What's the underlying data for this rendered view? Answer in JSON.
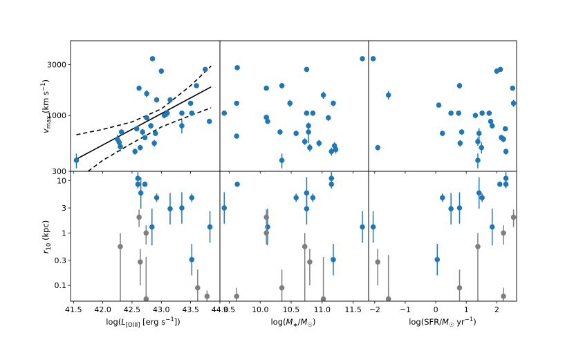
{
  "figure": {
    "panel_ylabels": {
      "top": {
        "main": "v",
        "sub": "max",
        "rest": " (km s",
        "sup": "−1",
        "end": ")"
      },
      "bottom": {
        "main": "r",
        "sub": "10",
        "rest": " (kpc)"
      }
    },
    "xlabels": [
      {
        "pre": "log(",
        "italic": "L",
        "sub": "[OIII]",
        "mid": " [erg s",
        "sup": "−1",
        "post": "])"
      },
      {
        "pre": "log(",
        "italic": "M",
        "sub": "∗",
        "mid": "/",
        "italic2": "M",
        "sub2": "☉",
        "post": ")"
      },
      {
        "pre": "log(SFR/",
        "italic": "M",
        "sub": "☉",
        "mid": " yr",
        "sup": "−1",
        "post": ")"
      }
    ]
  },
  "chart_data": [
    {
      "type": "scatter",
      "panel": "top-left",
      "xlim": [
        41.45,
        44.0
      ],
      "ylim": [
        300,
        5000
      ],
      "yscale": "log",
      "xticks": [
        "41.5",
        "42.0",
        "42.5",
        "43.0",
        "43.5",
        "44.0"
      ],
      "yticks": [
        "300",
        "1000",
        "3000"
      ],
      "colors": {
        "points": "#1f77b4",
        "fit": "#000000"
      },
      "series": [
        {
          "x": 41.55,
          "y": 380,
          "yerr": 60
        },
        {
          "x": 42.25,
          "y": 600,
          "yerr": 60
        },
        {
          "x": 42.28,
          "y": 560,
          "yerr": 50
        },
        {
          "x": 42.3,
          "y": 510,
          "yerr": 50
        },
        {
          "x": 42.32,
          "y": 700,
          "yerr": 40
        },
        {
          "x": 42.55,
          "y": 460,
          "yerr": 30
        },
        {
          "x": 42.58,
          "y": 750,
          "yerr": 40
        },
        {
          "x": 42.62,
          "y": 1800,
          "yerr": 60
        },
        {
          "x": 42.64,
          "y": 500,
          "yerr": 30
        },
        {
          "x": 42.68,
          "y": 700,
          "yerr": 50
        },
        {
          "x": 42.72,
          "y": 620,
          "yerr": 30
        },
        {
          "x": 42.75,
          "y": 1600,
          "yerr": 120
        },
        {
          "x": 42.75,
          "y": 950,
          "yerr": 50
        },
        {
          "x": 42.82,
          "y": 800,
          "yerr": 50
        },
        {
          "x": 42.85,
          "y": 3400,
          "yerr": 150
        },
        {
          "x": 42.88,
          "y": 550,
          "yerr": 40
        },
        {
          "x": 42.9,
          "y": 680,
          "yerr": 40
        },
        {
          "x": 42.92,
          "y": 1400,
          "yerr": 80
        },
        {
          "x": 43.0,
          "y": 2600,
          "yerr": 150
        },
        {
          "x": 43.05,
          "y": 1000,
          "yerr": 60
        },
        {
          "x": 43.1,
          "y": 1050,
          "yerr": 80
        },
        {
          "x": 43.15,
          "y": 1400,
          "yerr": 80
        },
        {
          "x": 43.35,
          "y": 800,
          "yerr": 120
        },
        {
          "x": 43.35,
          "y": 1050,
          "yerr": 50
        },
        {
          "x": 43.5,
          "y": 1300,
          "yerr": 60
        },
        {
          "x": 43.52,
          "y": 1050,
          "yerr": 60
        },
        {
          "x": 43.6,
          "y": 1900,
          "yerr": 100
        },
        {
          "x": 43.75,
          "y": 2700,
          "yerr": 100
        },
        {
          "x": 43.82,
          "y": 880,
          "yerr": 40
        }
      ],
      "fit": {
        "x": [
          41.55,
          43.85
        ],
        "y": [
          390,
          1850
        ],
        "band_upper_x": [
          41.55,
          42.0,
          42.5,
          43.0,
          43.5,
          43.85
        ],
        "band_upper_y": [
          660,
          740,
          870,
          1150,
          1900,
          2900
        ],
        "band_lower_x": [
          41.75,
          42.0,
          42.5,
          43.0,
          43.5,
          43.85
        ],
        "band_lower_y": [
          300,
          380,
          550,
          780,
          1000,
          1180
        ]
      }
    },
    {
      "type": "scatter",
      "panel": "top-middle",
      "xlim": [
        9.35,
        11.75
      ],
      "ylim": [
        300,
        5000
      ],
      "yscale": "log",
      "xticks": [
        "9.5",
        "10.0",
        "10.5",
        "11.0",
        "11.5"
      ],
      "colors": {
        "points": "#1f77b4"
      },
      "series": [
        {
          "x": 9.42,
          "y": 1050,
          "yerr": 40
        },
        {
          "x": 9.62,
          "y": 1300,
          "yerr": 50
        },
        {
          "x": 9.63,
          "y": 2800,
          "yerr": 80
        },
        {
          "x": 9.62,
          "y": 640,
          "yerr": 30
        },
        {
          "x": 10.1,
          "y": 1800,
          "yerr": 60
        },
        {
          "x": 10.1,
          "y": 960,
          "yerr": 50
        },
        {
          "x": 10.12,
          "y": 880,
          "yerr": 40
        },
        {
          "x": 10.32,
          "y": 700,
          "yerr": 40
        },
        {
          "x": 10.35,
          "y": 1900,
          "yerr": 120
        },
        {
          "x": 10.35,
          "y": 380,
          "yerr": 60
        },
        {
          "x": 10.48,
          "y": 1300,
          "yerr": 100
        },
        {
          "x": 10.58,
          "y": 680,
          "yerr": 40
        },
        {
          "x": 10.72,
          "y": 570,
          "yerr": 40
        },
        {
          "x": 10.75,
          "y": 2700,
          "yerr": 150
        },
        {
          "x": 10.75,
          "y": 1050,
          "yerr": 50
        },
        {
          "x": 10.78,
          "y": 800,
          "yerr": 60
        },
        {
          "x": 10.78,
          "y": 700,
          "yerr": 150
        },
        {
          "x": 10.8,
          "y": 500,
          "yerr": 40
        },
        {
          "x": 10.85,
          "y": 1050,
          "yerr": 60
        },
        {
          "x": 10.95,
          "y": 550,
          "yerr": 40
        },
        {
          "x": 11.02,
          "y": 1550,
          "yerr": 120
        },
        {
          "x": 11.1,
          "y": 950,
          "yerr": 60
        },
        {
          "x": 11.15,
          "y": 460,
          "yerr": 40
        },
        {
          "x": 11.18,
          "y": 1300,
          "yerr": 80
        },
        {
          "x": 11.2,
          "y": 520,
          "yerr": 40
        },
        {
          "x": 11.22,
          "y": 480,
          "yerr": 40
        },
        {
          "x": 11.65,
          "y": 3400,
          "yerr": 150
        }
      ]
    },
    {
      "type": "scatter",
      "panel": "top-right",
      "xlim": [
        -2.2,
        2.65
      ],
      "ylim": [
        300,
        5000
      ],
      "yscale": "log",
      "xticks": [
        "−2",
        "−1",
        "0",
        "1",
        "2"
      ],
      "colors": {
        "points": "#1f77b4"
      },
      "series": [
        {
          "x": -2.05,
          "y": 3400,
          "yerr": 150
        },
        {
          "x": -1.9,
          "y": 500,
          "yerr": 30
        },
        {
          "x": -1.55,
          "y": 1550,
          "yerr": 150
        },
        {
          "x": 0.1,
          "y": 1250,
          "yerr": 50
        },
        {
          "x": 0.22,
          "y": 680,
          "yerr": 40
        },
        {
          "x": 0.5,
          "y": 1050,
          "yerr": 50
        },
        {
          "x": 0.78,
          "y": 1900,
          "yerr": 120
        },
        {
          "x": 0.8,
          "y": 550,
          "yerr": 40
        },
        {
          "x": 0.85,
          "y": 700,
          "yerr": 40
        },
        {
          "x": 0.75,
          "y": 1050,
          "yerr": 60
        },
        {
          "x": 1.3,
          "y": 1000,
          "yerr": 60
        },
        {
          "x": 1.38,
          "y": 570,
          "yerr": 50
        },
        {
          "x": 1.38,
          "y": 380,
          "yerr": 60
        },
        {
          "x": 1.42,
          "y": 680,
          "yerr": 80
        },
        {
          "x": 1.5,
          "y": 500,
          "yerr": 60
        },
        {
          "x": 1.52,
          "y": 1050,
          "yerr": 60
        },
        {
          "x": 1.75,
          "y": 1050,
          "yerr": 60
        },
        {
          "x": 1.8,
          "y": 880,
          "yerr": 40
        },
        {
          "x": 1.85,
          "y": 800,
          "yerr": 50
        },
        {
          "x": 2.0,
          "y": 2600,
          "yerr": 150
        },
        {
          "x": 2.12,
          "y": 2700,
          "yerr": 100
        },
        {
          "x": 2.15,
          "y": 620,
          "yerr": 40
        },
        {
          "x": 2.22,
          "y": 600,
          "yerr": 40
        },
        {
          "x": 2.28,
          "y": 750,
          "yerr": 40
        },
        {
          "x": 2.3,
          "y": 460,
          "yerr": 30
        },
        {
          "x": 2.52,
          "y": 1800,
          "yerr": 60
        },
        {
          "x": 2.55,
          "y": 1300,
          "yerr": 100
        }
      ]
    },
    {
      "type": "scatter",
      "panel": "bottom-left",
      "xlim": [
        41.45,
        44.0
      ],
      "ylim": [
        0.05,
        15
      ],
      "yscale": "log",
      "xticks": [
        "41.5",
        "42.0",
        "42.5",
        "43.0",
        "43.5",
        "44.0"
      ],
      "yticks": [
        "0.1",
        "0.3",
        "1",
        "3",
        "10"
      ],
      "colors": {
        "blue": "#1f77b4",
        "gray": "#7f7f7f"
      },
      "series": [
        {
          "name": "blue",
          "points": [
            {
              "x": 42.6,
              "y": 11,
              "err": 0.12
            },
            {
              "x": 42.6,
              "y": 8.5,
              "err": 0.08
            },
            {
              "x": 42.65,
              "y": 5.8,
              "err": 0.3
            },
            {
              "x": 42.72,
              "y": 8.5,
              "err": 0.05
            },
            {
              "x": 42.84,
              "y": 1.3,
              "err": 0.35
            },
            {
              "x": 42.92,
              "y": 4.7,
              "err": 0.08
            },
            {
              "x": 43.15,
              "y": 2.9,
              "err": 0.3
            },
            {
              "x": 43.35,
              "y": 3.0,
              "err": 0.3
            },
            {
              "x": 43.52,
              "y": 4.7,
              "err": 0.08
            },
            {
              "x": 43.52,
              "y": 0.31,
              "err": 0.3
            },
            {
              "x": 43.83,
              "y": 1.3,
              "err": 0.3
            }
          ]
        },
        {
          "name": "gray",
          "points": [
            {
              "x": 42.3,
              "y": 0.55,
              "lo": 0.04,
              "hi": 1.0
            },
            {
              "x": 42.62,
              "y": 2.0,
              "lo": 1.3,
              "hi": 2.8
            },
            {
              "x": 42.64,
              "y": 0.28,
              "lo": 0.1,
              "hi": 0.5
            },
            {
              "x": 42.74,
              "y": 1.0,
              "lo": 0.6,
              "hi": 1.4
            },
            {
              "x": 42.74,
              "y": 0.055,
              "lo": 0.04,
              "hi": 0.35
            },
            {
              "x": 43.62,
              "y": 0.09,
              "lo": 0.05,
              "hi": 0.2
            },
            {
              "x": 43.78,
              "y": 0.062,
              "lo": 0.05,
              "hi": 0.08
            }
          ]
        }
      ]
    },
    {
      "type": "scatter",
      "panel": "bottom-middle",
      "xlim": [
        9.35,
        11.75
      ],
      "ylim": [
        0.05,
        15
      ],
      "yscale": "log",
      "xticks": [
        "9.5",
        "10.0",
        "10.5",
        "11.0",
        "11.5"
      ],
      "colors": {
        "blue": "#1f77b4",
        "gray": "#7f7f7f"
      },
      "series": [
        {
          "name": "blue",
          "points": [
            {
              "x": 9.42,
              "y": 3.0,
              "err": 0.3
            },
            {
              "x": 9.63,
              "y": 8.5,
              "err": 0.05
            },
            {
              "x": 10.12,
              "y": 1.3,
              "err": 0.35
            },
            {
              "x": 10.58,
              "y": 4.7,
              "err": 0.08
            },
            {
              "x": 10.75,
              "y": 2.9,
              "err": 0.3
            },
            {
              "x": 10.75,
              "y": 5.8,
              "err": 0.3
            },
            {
              "x": 10.85,
              "y": 4.7,
              "err": 0.08
            },
            {
              "x": 11.15,
              "y": 11,
              "err": 0.12
            },
            {
              "x": 11.15,
              "y": 8.5,
              "err": 0.08
            },
            {
              "x": 11.18,
              "y": 0.31,
              "err": 0.3
            },
            {
              "x": 11.65,
              "y": 1.3,
              "err": 0.3
            }
          ]
        },
        {
          "name": "gray",
          "points": [
            {
              "x": 9.62,
              "y": 0.062,
              "lo": 0.05,
              "hi": 0.09
            },
            {
              "x": 10.1,
              "y": 2.0,
              "lo": 1.3,
              "hi": 2.8
            },
            {
              "x": 10.1,
              "y": 1.0,
              "lo": 0.6,
              "hi": 1.4
            },
            {
              "x": 10.35,
              "y": 0.09,
              "lo": 0.05,
              "hi": 0.2
            },
            {
              "x": 10.72,
              "y": 0.55,
              "lo": 0.04,
              "hi": 1.0
            },
            {
              "x": 10.8,
              "y": 0.28,
              "lo": 0.1,
              "hi": 0.5
            },
            {
              "x": 11.02,
              "y": 0.055,
              "lo": 0.04,
              "hi": 0.35
            }
          ]
        }
      ]
    },
    {
      "type": "scatter",
      "panel": "bottom-right",
      "xlim": [
        -2.2,
        2.65
      ],
      "ylim": [
        0.05,
        15
      ],
      "yscale": "log",
      "xticks": [
        "−2",
        "−1",
        "0",
        "1",
        "2"
      ],
      "colors": {
        "blue": "#1f77b4",
        "gray": "#7f7f7f"
      },
      "series": [
        {
          "name": "blue",
          "points": [
            {
              "x": -2.05,
              "y": 1.3,
              "err": 0.3
            },
            {
              "x": 0.05,
              "y": 0.31,
              "err": 0.3
            },
            {
              "x": 0.22,
              "y": 4.7,
              "err": 0.08
            },
            {
              "x": 0.5,
              "y": 2.9,
              "err": 0.3
            },
            {
              "x": 0.78,
              "y": 3.0,
              "err": 0.3
            },
            {
              "x": 1.42,
              "y": 5.8,
              "err": 0.3
            },
            {
              "x": 1.52,
              "y": 4.7,
              "err": 0.08
            },
            {
              "x": 1.85,
              "y": 1.3,
              "err": 0.35
            },
            {
              "x": 2.1,
              "y": 8.5,
              "err": 0.05
            },
            {
              "x": 2.3,
              "y": 11,
              "err": 0.12
            },
            {
              "x": 2.3,
              "y": 8.5,
              "err": 0.08
            }
          ]
        },
        {
          "name": "gray",
          "points": [
            {
              "x": -1.9,
              "y": 0.28,
              "lo": 0.1,
              "hi": 0.5
            },
            {
              "x": -1.55,
              "y": 0.055,
              "lo": 0.04,
              "hi": 0.38
            },
            {
              "x": 0.78,
              "y": 0.09,
              "lo": 0.05,
              "hi": 0.2
            },
            {
              "x": 1.38,
              "y": 0.55,
              "lo": 0.04,
              "hi": 1.0
            },
            {
              "x": 2.22,
              "y": 1.0,
              "lo": 0.6,
              "hi": 1.4
            },
            {
              "x": 2.22,
              "y": 0.062,
              "lo": 0.05,
              "hi": 0.09
            },
            {
              "x": 2.55,
              "y": 2.0,
              "lo": 1.3,
              "hi": 2.8
            }
          ]
        }
      ]
    }
  ]
}
